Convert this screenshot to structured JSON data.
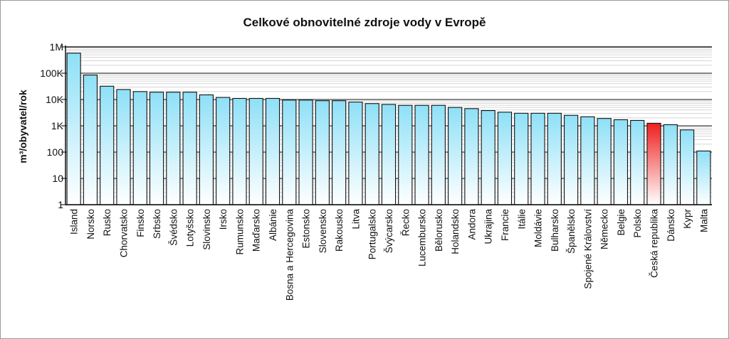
{
  "chart_data": {
    "type": "bar",
    "title": "Celkové obnovitelné zdroje vody v Evropě",
    "ylabel": "m³/obyvatel/rok",
    "xlabel": "",
    "yscale": "log",
    "ylim": [
      1,
      1000000
    ],
    "yticks": [
      1,
      10,
      100,
      1000,
      10000,
      100000,
      1000000
    ],
    "ytick_labels": [
      "1",
      "10",
      "100",
      "1K",
      "10K",
      "100K",
      "1M"
    ],
    "grid": true,
    "colors": {
      "bar": "#a8e8f8",
      "highlight": "#ee1f1f"
    },
    "highlight": "Česká republika",
    "categories": [
      "Island",
      "Norsko",
      "Rusko",
      "Chorvatsko",
      "Finsko",
      "Srbsko",
      "Švédsko",
      "Lotyšsko",
      "Slovinsko",
      "Irsko",
      "Rumunsko",
      "Maďarsko",
      "Albánie",
      "Bosna a Hercegovina",
      "Estonsko",
      "Slovensko",
      "Rakousko",
      "Litva",
      "Portugalsko",
      "Švýcarsko",
      "Řecko",
      "Lucembursko",
      "Bělorusko",
      "Holandsko",
      "Andora",
      "Ukrajina",
      "Francie",
      "Itálie",
      "Moldávie",
      "Bulharsko",
      "Španělsko",
      "Spojené Království",
      "Německo",
      "Belgie",
      "Polsko",
      "Česká republika",
      "Dánsko",
      "Kypr",
      "Malta"
    ],
    "values": [
      580000,
      85000,
      32000,
      24000,
      20000,
      19000,
      19000,
      19000,
      15000,
      12000,
      11000,
      11000,
      11000,
      9500,
      9500,
      9000,
      9000,
      8000,
      7000,
      6500,
      6000,
      6000,
      6000,
      5000,
      4500,
      3800,
      3300,
      3000,
      3000,
      3000,
      2500,
      2200,
      1900,
      1700,
      1600,
      1250,
      1100,
      700,
      110
    ]
  }
}
